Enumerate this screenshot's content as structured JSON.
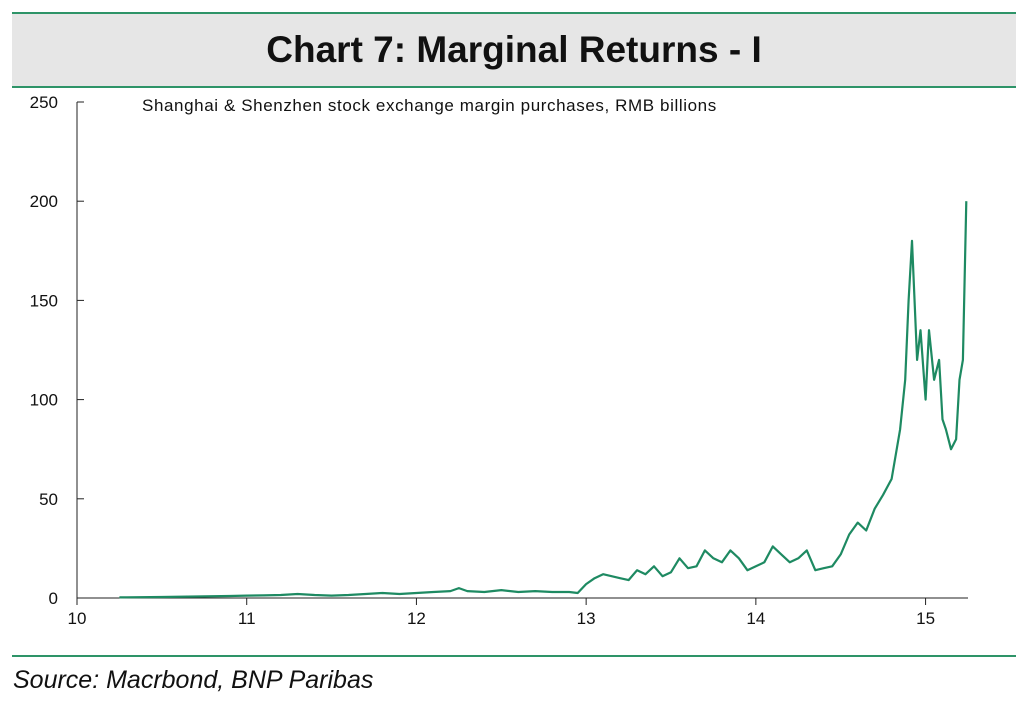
{
  "header": {
    "title": "Chart 7: Marginal Returns - I"
  },
  "footer": {
    "source": "Source: Macrbond, BNP Paribas"
  },
  "colors": {
    "accent": "#2e9468",
    "series": "#1e8a62",
    "title_bg": "#e6e6e6"
  },
  "chart_data": {
    "type": "line",
    "title": "Chart 7: Marginal Returns - I",
    "subtitle": "Shanghai & Shenzhen stock exchange margin purchases, RMB billions",
    "xlabel": "",
    "ylabel": "",
    "xlim": [
      10,
      15.25
    ],
    "ylim": [
      0,
      250
    ],
    "x_ticks": [
      10,
      11,
      12,
      13,
      14,
      15
    ],
    "y_ticks": [
      0,
      50,
      100,
      150,
      200,
      250
    ],
    "grid": false,
    "legend": "none",
    "series": [
      {
        "name": "",
        "x": [
          10.25,
          10.5,
          10.75,
          10.9,
          11.0,
          11.1,
          11.2,
          11.3,
          11.4,
          11.5,
          11.6,
          11.7,
          11.8,
          11.9,
          12.0,
          12.1,
          12.2,
          12.25,
          12.3,
          12.4,
          12.5,
          12.6,
          12.7,
          12.8,
          12.9,
          12.95,
          13.0,
          13.05,
          13.1,
          13.15,
          13.2,
          13.25,
          13.3,
          13.35,
          13.4,
          13.45,
          13.5,
          13.55,
          13.6,
          13.65,
          13.7,
          13.75,
          13.8,
          13.85,
          13.9,
          13.95,
          14.0,
          14.05,
          14.1,
          14.15,
          14.2,
          14.25,
          14.3,
          14.35,
          14.4,
          14.45,
          14.5,
          14.55,
          14.6,
          14.65,
          14.7,
          14.75,
          14.8,
          14.85,
          14.88,
          14.9,
          14.92,
          14.95,
          14.97,
          15.0,
          15.02,
          15.05,
          15.08,
          15.1,
          15.12,
          15.15,
          15.18,
          15.2,
          15.22,
          15.24
        ],
        "y": [
          0.3,
          0.5,
          0.8,
          1.0,
          1.2,
          1.3,
          1.5,
          2.0,
          1.5,
          1.2,
          1.5,
          2.0,
          2.5,
          2.0,
          2.5,
          3.0,
          3.5,
          5.0,
          3.5,
          3.0,
          4.0,
          3.0,
          3.5,
          3.0,
          3.0,
          2.5,
          7.0,
          10.0,
          12.0,
          11.0,
          10.0,
          9.0,
          14.0,
          12.0,
          16.0,
          11.0,
          13.0,
          20.0,
          15.0,
          16.0,
          24.0,
          20.0,
          18.0,
          24.0,
          20.0,
          14.0,
          16.0,
          18.0,
          26.0,
          22.0,
          18.0,
          20.0,
          24.0,
          14.0,
          15.0,
          16.0,
          22.0,
          32.0,
          38.0,
          34.0,
          45.0,
          52.0,
          60.0,
          85.0,
          110.0,
          150.0,
          180.0,
          120.0,
          135.0,
          100.0,
          135.0,
          110.0,
          120.0,
          90.0,
          85.0,
          75.0,
          80.0,
          110.0,
          120.0,
          200.0
        ]
      }
    ]
  }
}
